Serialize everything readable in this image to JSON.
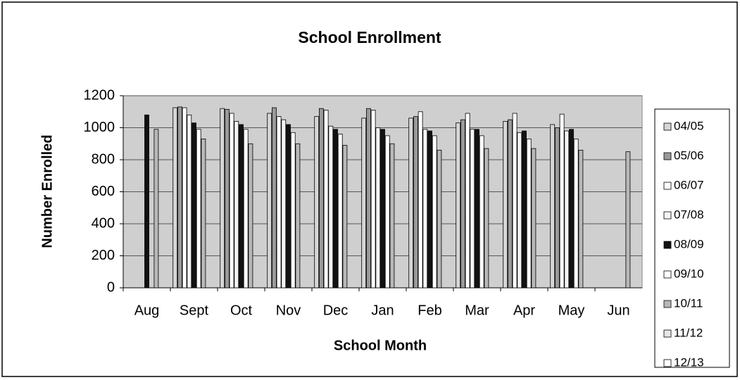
{
  "chart_data": {
    "type": "bar",
    "title": "School Enrollment",
    "x_label": "School Month",
    "y_label": "Number Enrolled",
    "categories": [
      "Aug",
      "Sept",
      "Oct",
      "Nov",
      "Dec",
      "Jan",
      "Feb",
      "Mar",
      "Apr",
      "May",
      "Jun"
    ],
    "series": [
      {
        "name": "04/05",
        "color": "#d6d6d6",
        "values": [
          null,
          1125,
          1120,
          1090,
          1070,
          1060,
          1060,
          1030,
          1040,
          1020,
          null
        ]
      },
      {
        "name": "05/06",
        "color": "#9a9a9a",
        "values": [
          null,
          1130,
          1115,
          1125,
          1120,
          1120,
          1070,
          1050,
          1050,
          1000,
          null
        ]
      },
      {
        "name": "06/07",
        "color": "#ffffff",
        "values": [
          null,
          1125,
          1090,
          1070,
          1110,
          1110,
          1100,
          1090,
          1090,
          1085,
          null
        ]
      },
      {
        "name": "07/08",
        "color": "#f4f4f4",
        "values": [
          null,
          1080,
          1040,
          1050,
          1010,
          1000,
          990,
          990,
          970,
          980,
          null
        ]
      },
      {
        "name": "08/09",
        "color": "#111111",
        "values": [
          1080,
          1030,
          1020,
          1020,
          990,
          990,
          980,
          990,
          980,
          990,
          null
        ]
      },
      {
        "name": "09/10",
        "color": "#ffffff",
        "values": [
          null,
          990,
          990,
          970,
          960,
          950,
          950,
          950,
          930,
          930,
          null
        ]
      },
      {
        "name": "10/11",
        "color": "#b8b8b8",
        "values": [
          990,
          930,
          900,
          900,
          890,
          900,
          860,
          870,
          870,
          860,
          850
        ]
      },
      {
        "name": "11/12",
        "color": "#e6e6e6",
        "values": [
          null,
          null,
          null,
          null,
          null,
          null,
          null,
          null,
          null,
          null,
          null
        ]
      },
      {
        "name": "12/13",
        "color": "#ffffff",
        "values": [
          null,
          null,
          null,
          null,
          null,
          null,
          null,
          null,
          null,
          null,
          null
        ]
      }
    ],
    "ylim": [
      0,
      1200
    ],
    "yticks": [
      0,
      200,
      400,
      600,
      800,
      1000,
      1200
    ],
    "grid": true,
    "legend": "right"
  }
}
